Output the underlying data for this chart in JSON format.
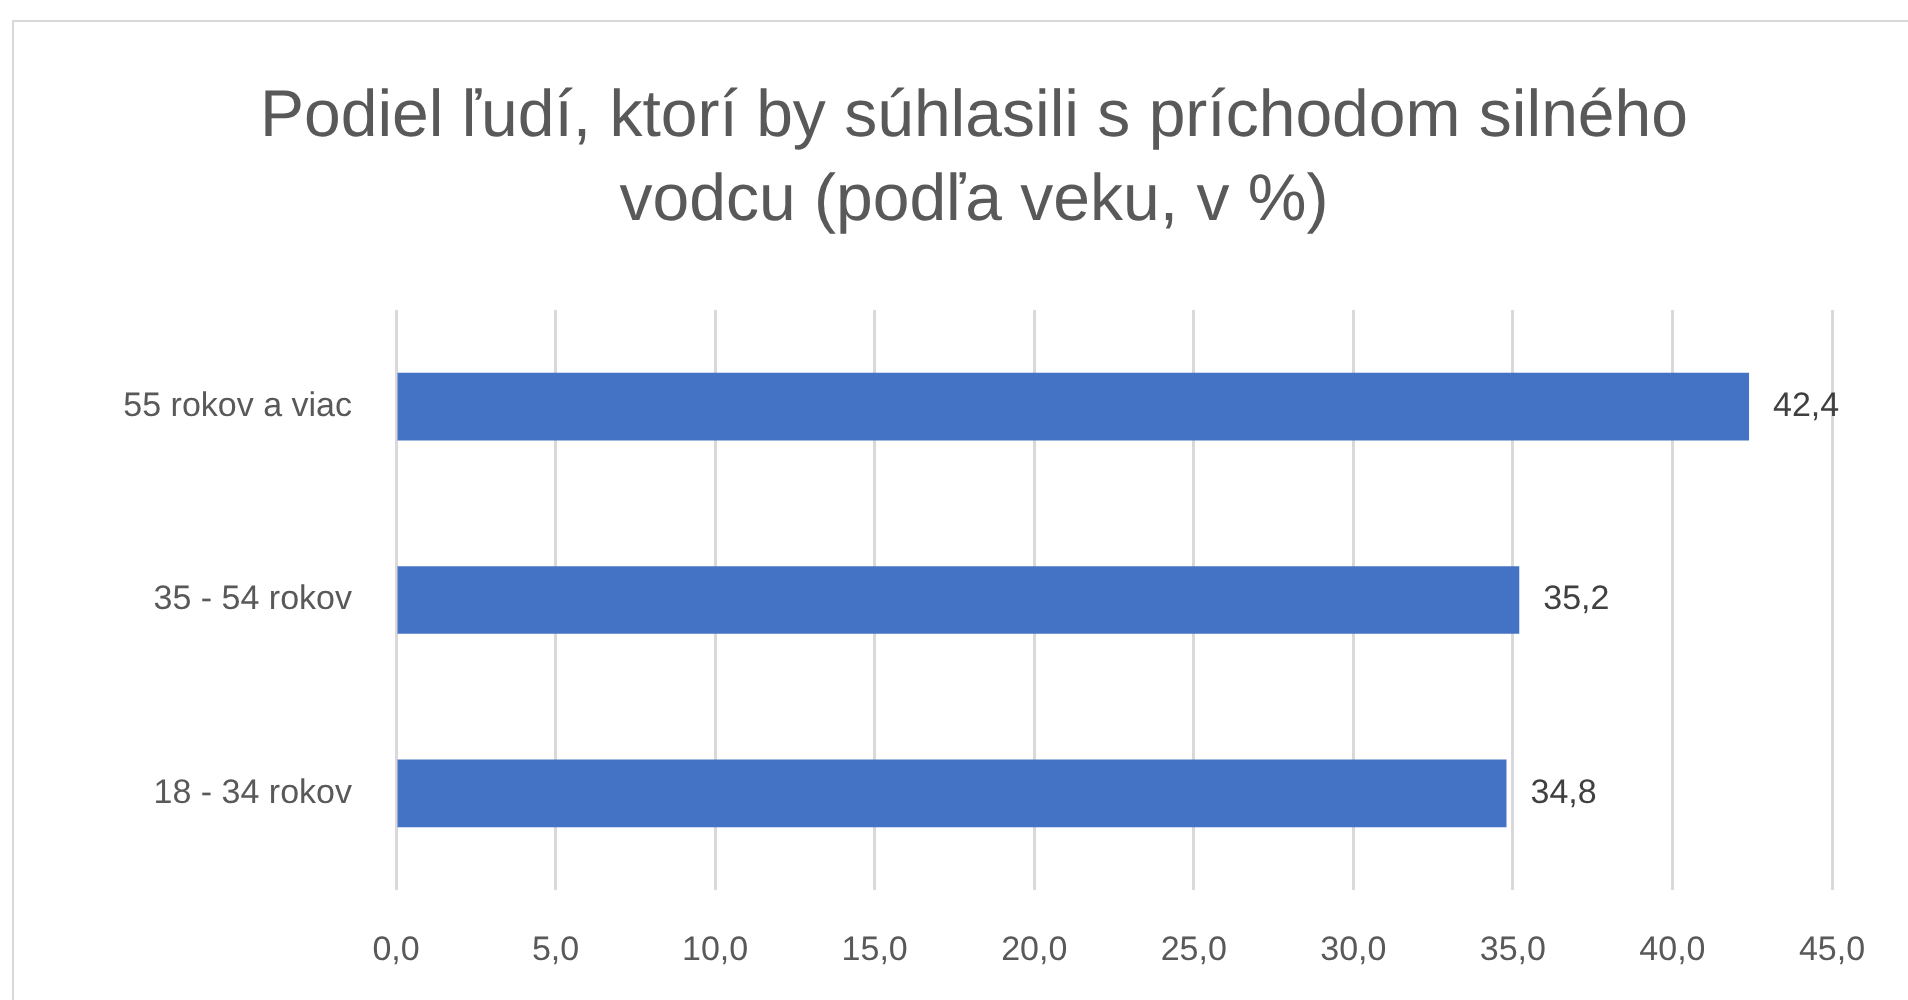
{
  "chart_data": {
    "type": "bar",
    "orientation": "horizontal",
    "title": "Podiel ľudí, ktorí by súhlasili s príchodom silného vodcu (podľa veku, v %)",
    "categories": [
      "55 rokov a viac",
      "35 - 54 rokov",
      "18 - 34 rokov"
    ],
    "values": [
      42.4,
      35.2,
      34.8
    ],
    "value_labels": [
      "42,4",
      "35,2",
      "34,8"
    ],
    "color": "#4472c4",
    "xlim": [
      0,
      45
    ],
    "xticks": [
      {
        "value": 0,
        "label": "0,0"
      },
      {
        "value": 5,
        "label": "5,0"
      },
      {
        "value": 10,
        "label": "10,0"
      },
      {
        "value": 15,
        "label": "15,0"
      },
      {
        "value": 20,
        "label": "20,0"
      },
      {
        "value": 25,
        "label": "25,0"
      },
      {
        "value": 30,
        "label": "30,0"
      },
      {
        "value": 35,
        "label": "35,0"
      },
      {
        "value": 40,
        "label": "40,0"
      },
      {
        "value": 45,
        "label": "45,0"
      }
    ],
    "grid": "x"
  }
}
